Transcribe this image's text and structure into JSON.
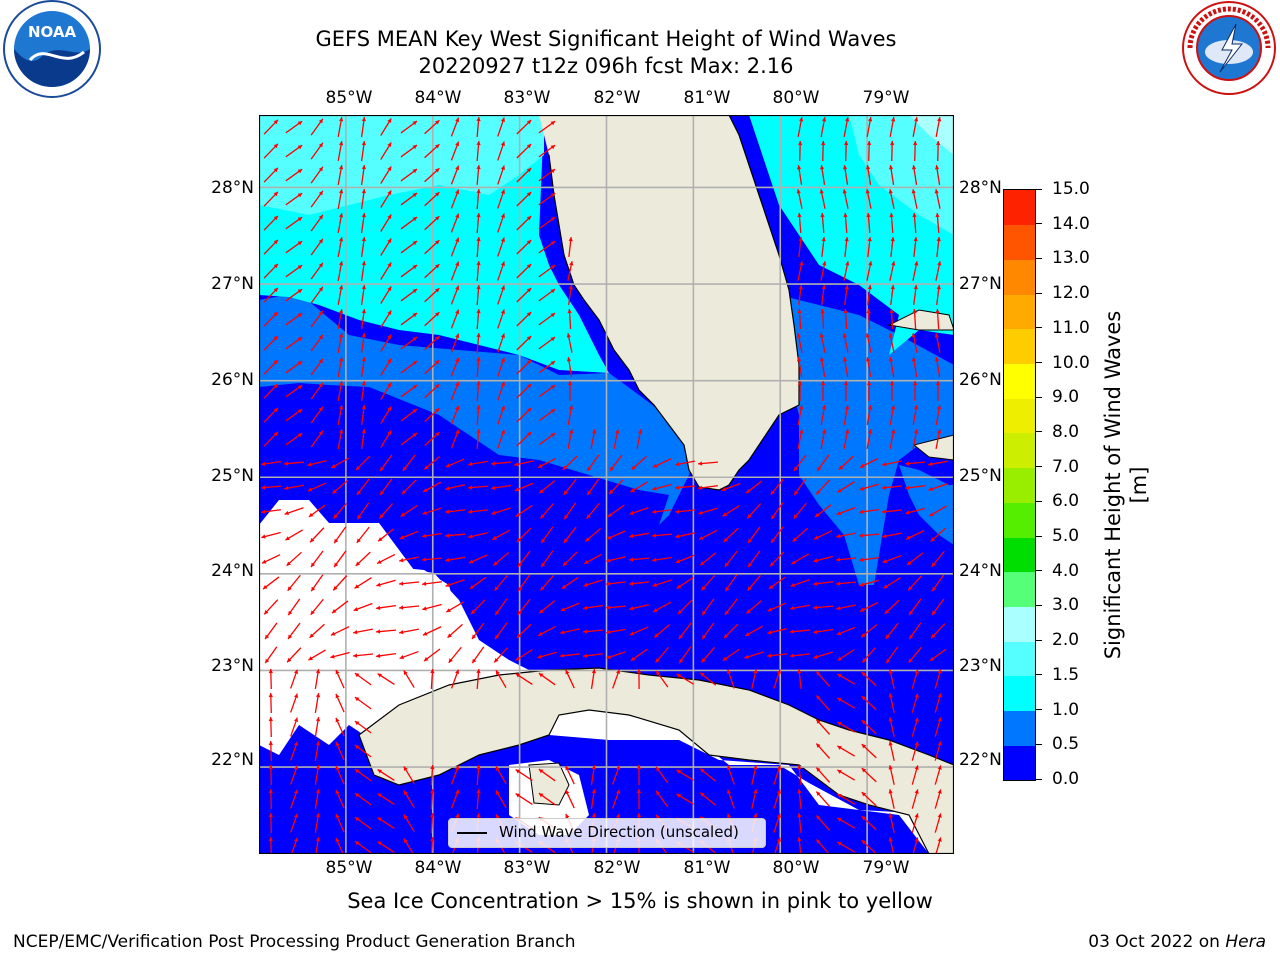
{
  "title": {
    "line1": "GEFS MEAN Key West Significant Height of Wind Waves",
    "line2": "20220927 t12z 096h fcst   Max: 2.16"
  },
  "logos": {
    "left": {
      "name": "noaa-logo",
      "text": "NOAA"
    },
    "right": {
      "name": "nws-logo",
      "text": "NATIONAL WEATHER SERVICE"
    }
  },
  "map": {
    "lon_labels": [
      "85°W",
      "84°W",
      "83°W",
      "82°W",
      "81°W",
      "80°W",
      "79°W"
    ],
    "lat_labels": [
      "28°N",
      "27°N",
      "26°N",
      "25°N",
      "24°N",
      "23°N",
      "22°N"
    ],
    "lon_range": [
      -86.0,
      -78.0
    ],
    "lat_range": [
      21.1,
      28.75
    ],
    "arrow_color": "#ff0000",
    "land_color": "#ecebdb",
    "grid_color": "#b0b0b0",
    "legend_label": "Wind Wave Direction (unscaled)"
  },
  "colorbar": {
    "label": "Significant Height of Wind Waves [m]",
    "tick_labels": [
      "0.0",
      "0.5",
      "1.0",
      "1.5",
      "2.0",
      "3.0",
      "4.0",
      "5.0",
      "6.0",
      "7.0",
      "8.0",
      "9.0",
      "10.0",
      "11.0",
      "12.0",
      "13.0",
      "14.0",
      "15.0"
    ],
    "colors": [
      "#0000ff",
      "#0077ff",
      "#00ffff",
      "#55ffff",
      "#aaffff",
      "#55ff77",
      "#00dd00",
      "#55ee00",
      "#99ee00",
      "#ccee00",
      "#eeee00",
      "#ffff00",
      "#ffcc00",
      "#ffaa00",
      "#ff8800",
      "#ff5500",
      "#ff2200"
    ]
  },
  "chart_data": {
    "type": "heatmap",
    "variable": "Significant Height of Wind Waves",
    "units": "m",
    "max": 2.16,
    "levels": [
      0.0,
      0.5,
      1.0,
      1.5,
      2.0,
      3.0,
      4.0,
      5.0,
      6.0,
      7.0,
      8.0,
      9.0,
      10.0,
      11.0,
      12.0,
      13.0,
      14.0,
      15.0
    ]
  },
  "note": "Sea Ice Concentration > 15% is shown in pink to yellow",
  "footer": {
    "left": "NCEP/EMC/Verification Post Processing Product Generation Branch",
    "right_date": "03 Oct 2022 on",
    "right_host": "Hera"
  }
}
